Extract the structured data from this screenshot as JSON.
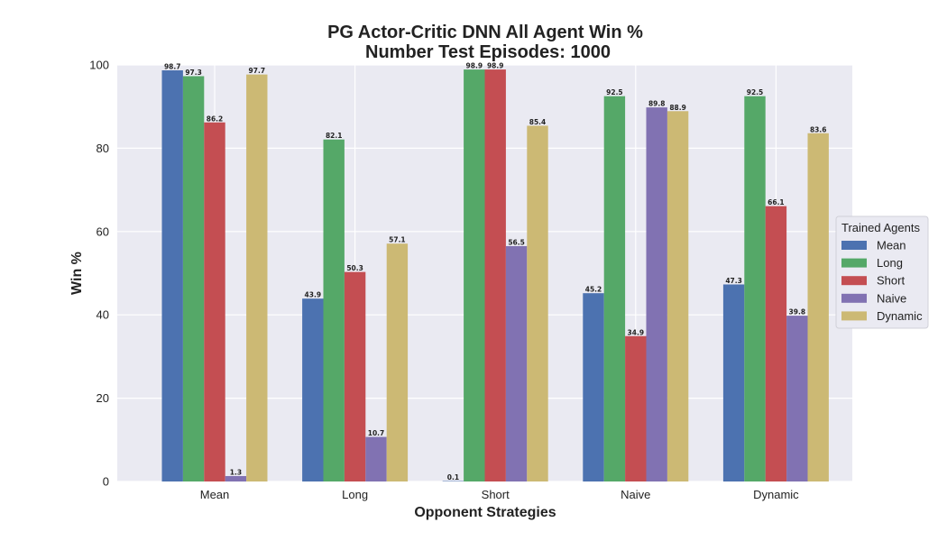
{
  "chart_data": {
    "type": "bar",
    "title_line1": "PG Actor-Critic DNN All Agent Win %",
    "title_line2": "Number Test Episodes: 1000",
    "xlabel": "Opponent Strategies",
    "ylabel": "Win %",
    "ylim": [
      0,
      100
    ],
    "yticks": [
      0,
      20,
      40,
      60,
      80,
      100
    ],
    "grid": true,
    "legend_title": "Trained Agents",
    "legend_position": "right",
    "categories": [
      "Mean",
      "Long",
      "Short",
      "Naive",
      "Dynamic"
    ],
    "series": [
      {
        "name": "Mean",
        "color": "#4c72b0",
        "values": [
          98.7,
          43.9,
          0.1,
          45.2,
          47.3
        ]
      },
      {
        "name": "Long",
        "color": "#55a868",
        "values": [
          97.3,
          82.1,
          98.9,
          92.5,
          92.5
        ]
      },
      {
        "name": "Short",
        "color": "#c44e52",
        "values": [
          86.2,
          50.3,
          98.9,
          34.9,
          66.1
        ]
      },
      {
        "name": "Naive",
        "color": "#8172b2",
        "values": [
          1.3,
          10.7,
          56.5,
          89.8,
          39.8
        ]
      },
      {
        "name": "Dynamic",
        "color": "#ccb974",
        "values": [
          97.7,
          57.1,
          85.4,
          88.9,
          83.6
        ]
      }
    ]
  }
}
